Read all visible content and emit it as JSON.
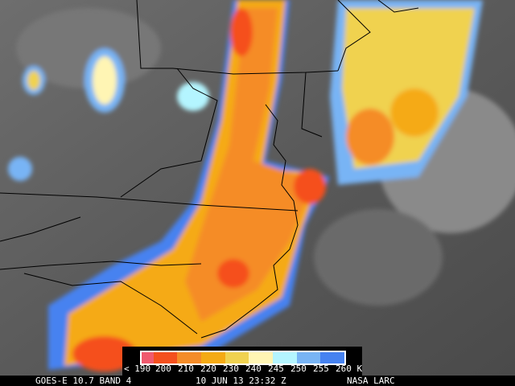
{
  "legend": {
    "colors": [
      "#f05a6e",
      "#f5501e",
      "#f58c28",
      "#f5aa14",
      "#f0d250",
      "#fff5b4",
      "#b4f5ff",
      "#78b4f5",
      "#4682f0"
    ],
    "labels": [
      "< 190",
      "200",
      "210",
      "220",
      "230",
      "240",
      "245",
      "250",
      "255",
      "260 K"
    ]
  },
  "footer": {
    "satellite": "GOES-E 10.7 BAND 4",
    "datetime": "10 JUN 13 23:32 Z",
    "source": "NASA LARC"
  },
  "palette": {
    "background_gray": "#555555",
    "border_lines": "#000000"
  }
}
